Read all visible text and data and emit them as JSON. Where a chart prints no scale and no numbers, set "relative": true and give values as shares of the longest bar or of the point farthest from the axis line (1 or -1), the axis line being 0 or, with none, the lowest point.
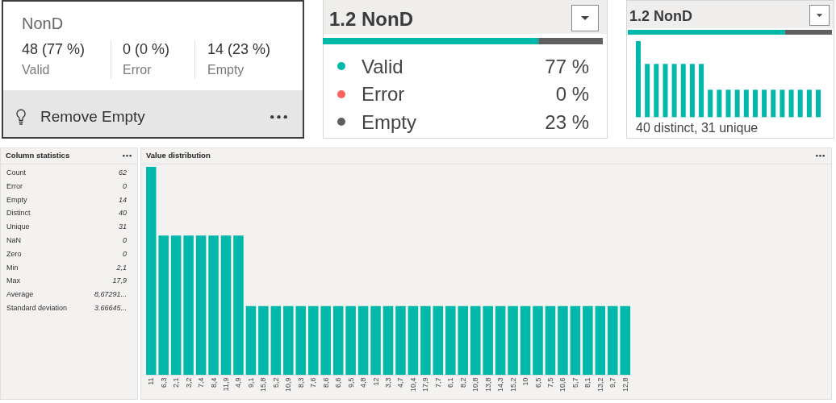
{
  "chart_data": [
    {
      "type": "other",
      "title": "NonD",
      "annotations": [
        "48 (77 %)",
        "Valid",
        "0 (0 %)",
        "Error",
        "14 (23 %)",
        "Empty",
        "Remove Empty"
      ]
    },
    {
      "type": "bar",
      "orientation": "horizontal",
      "stacked": true,
      "relative": true,
      "title": "1.2 NonD",
      "categories": [
        null
      ],
      "series": [
        {
          "color": "#01b8aa",
          "values": [
            0.77
          ]
        },
        {
          "color": "#5f5f5f",
          "values": [
            0.23
          ]
        }
      ]
    },
    {
      "type": "other",
      "categories": [
        "Valid",
        "Error",
        "Empty"
      ],
      "value_labels": [
        "77 %",
        "0 %",
        "23 %"
      ],
      "colors": [
        "#01b8aa",
        "#fd625e",
        "#5f5f5f"
      ]
    },
    {
      "type": "bar",
      "orientation": "horizontal",
      "stacked": true,
      "relative": true,
      "title": "1.2 NonD",
      "categories": [
        null
      ],
      "series": [
        {
          "color": "#01b8aa",
          "values": [
            0.77
          ]
        },
        {
          "color": "#5f5f5f",
          "values": [
            0.23
          ]
        }
      ]
    },
    {
      "type": "bar",
      "relative": true,
      "categories": [
        null,
        null,
        null,
        null,
        null,
        null,
        null,
        null,
        null,
        null,
        null,
        null,
        null,
        null,
        null,
        null,
        null,
        null,
        null,
        null,
        null
      ],
      "series": [
        {
          "color": "#01b8aa",
          "values": [
            1,
            0.7,
            0.7,
            0.7,
            0.7,
            0.7,
            0.7,
            0.7,
            0.36,
            0.36,
            0.36,
            0.36,
            0.36,
            0.36,
            0.36,
            0.36,
            0.36,
            0.36,
            0.36,
            0.36,
            0.36
          ]
        }
      ],
      "annotations": [
        "40 distinct, 31 unique"
      ]
    },
    {
      "type": "other",
      "title": "Column statistics",
      "categories": [
        "Count",
        "Error",
        "Empty",
        "Distinct",
        "Unique",
        "NaN",
        "Zero",
        "Min",
        "Max",
        "Average",
        "Standard deviation"
      ],
      "value_labels": [
        "62",
        "0",
        "14",
        "40",
        "31",
        "0",
        "0",
        "2,1",
        "17,9",
        "8,67291...",
        "3.66645..."
      ]
    },
    {
      "type": "bar",
      "relative": true,
      "title": "Value distribution",
      "categories": [
        "11",
        "6,3",
        "2,1",
        "3,2",
        "7,4",
        "8,4",
        "11,9",
        "4,9",
        "9,1",
        "15,8",
        "5,2",
        "10,9",
        "8,3",
        "7,6",
        "8,6",
        "6,6",
        "9,5",
        "4,8",
        "12",
        "3,3",
        "4,7",
        "10,4",
        "17,9",
        "7,7",
        "6,1",
        "8,2",
        "10,8",
        "13,8",
        "14,3",
        "15,2",
        "10",
        "6,5",
        "7,5",
        "10,6",
        "5,7",
        "8,1",
        "13,2",
        "9,7",
        "12,8"
      ],
      "series": [
        {
          "color": "#01b8aa",
          "values": [
            1,
            0.67,
            0.67,
            0.67,
            0.67,
            0.67,
            0.67,
            0.67,
            0.33,
            0.33,
            0.33,
            0.33,
            0.33,
            0.33,
            0.33,
            0.33,
            0.33,
            0.33,
            0.33,
            0.33,
            0.33,
            0.33,
            0.33,
            0.33,
            0.33,
            0.33,
            0.33,
            0.33,
            0.33,
            0.33,
            0.33,
            0.33,
            0.33,
            0.33,
            0.33,
            0.33,
            0.33,
            0.33,
            0.33
          ]
        }
      ]
    }
  ]
}
